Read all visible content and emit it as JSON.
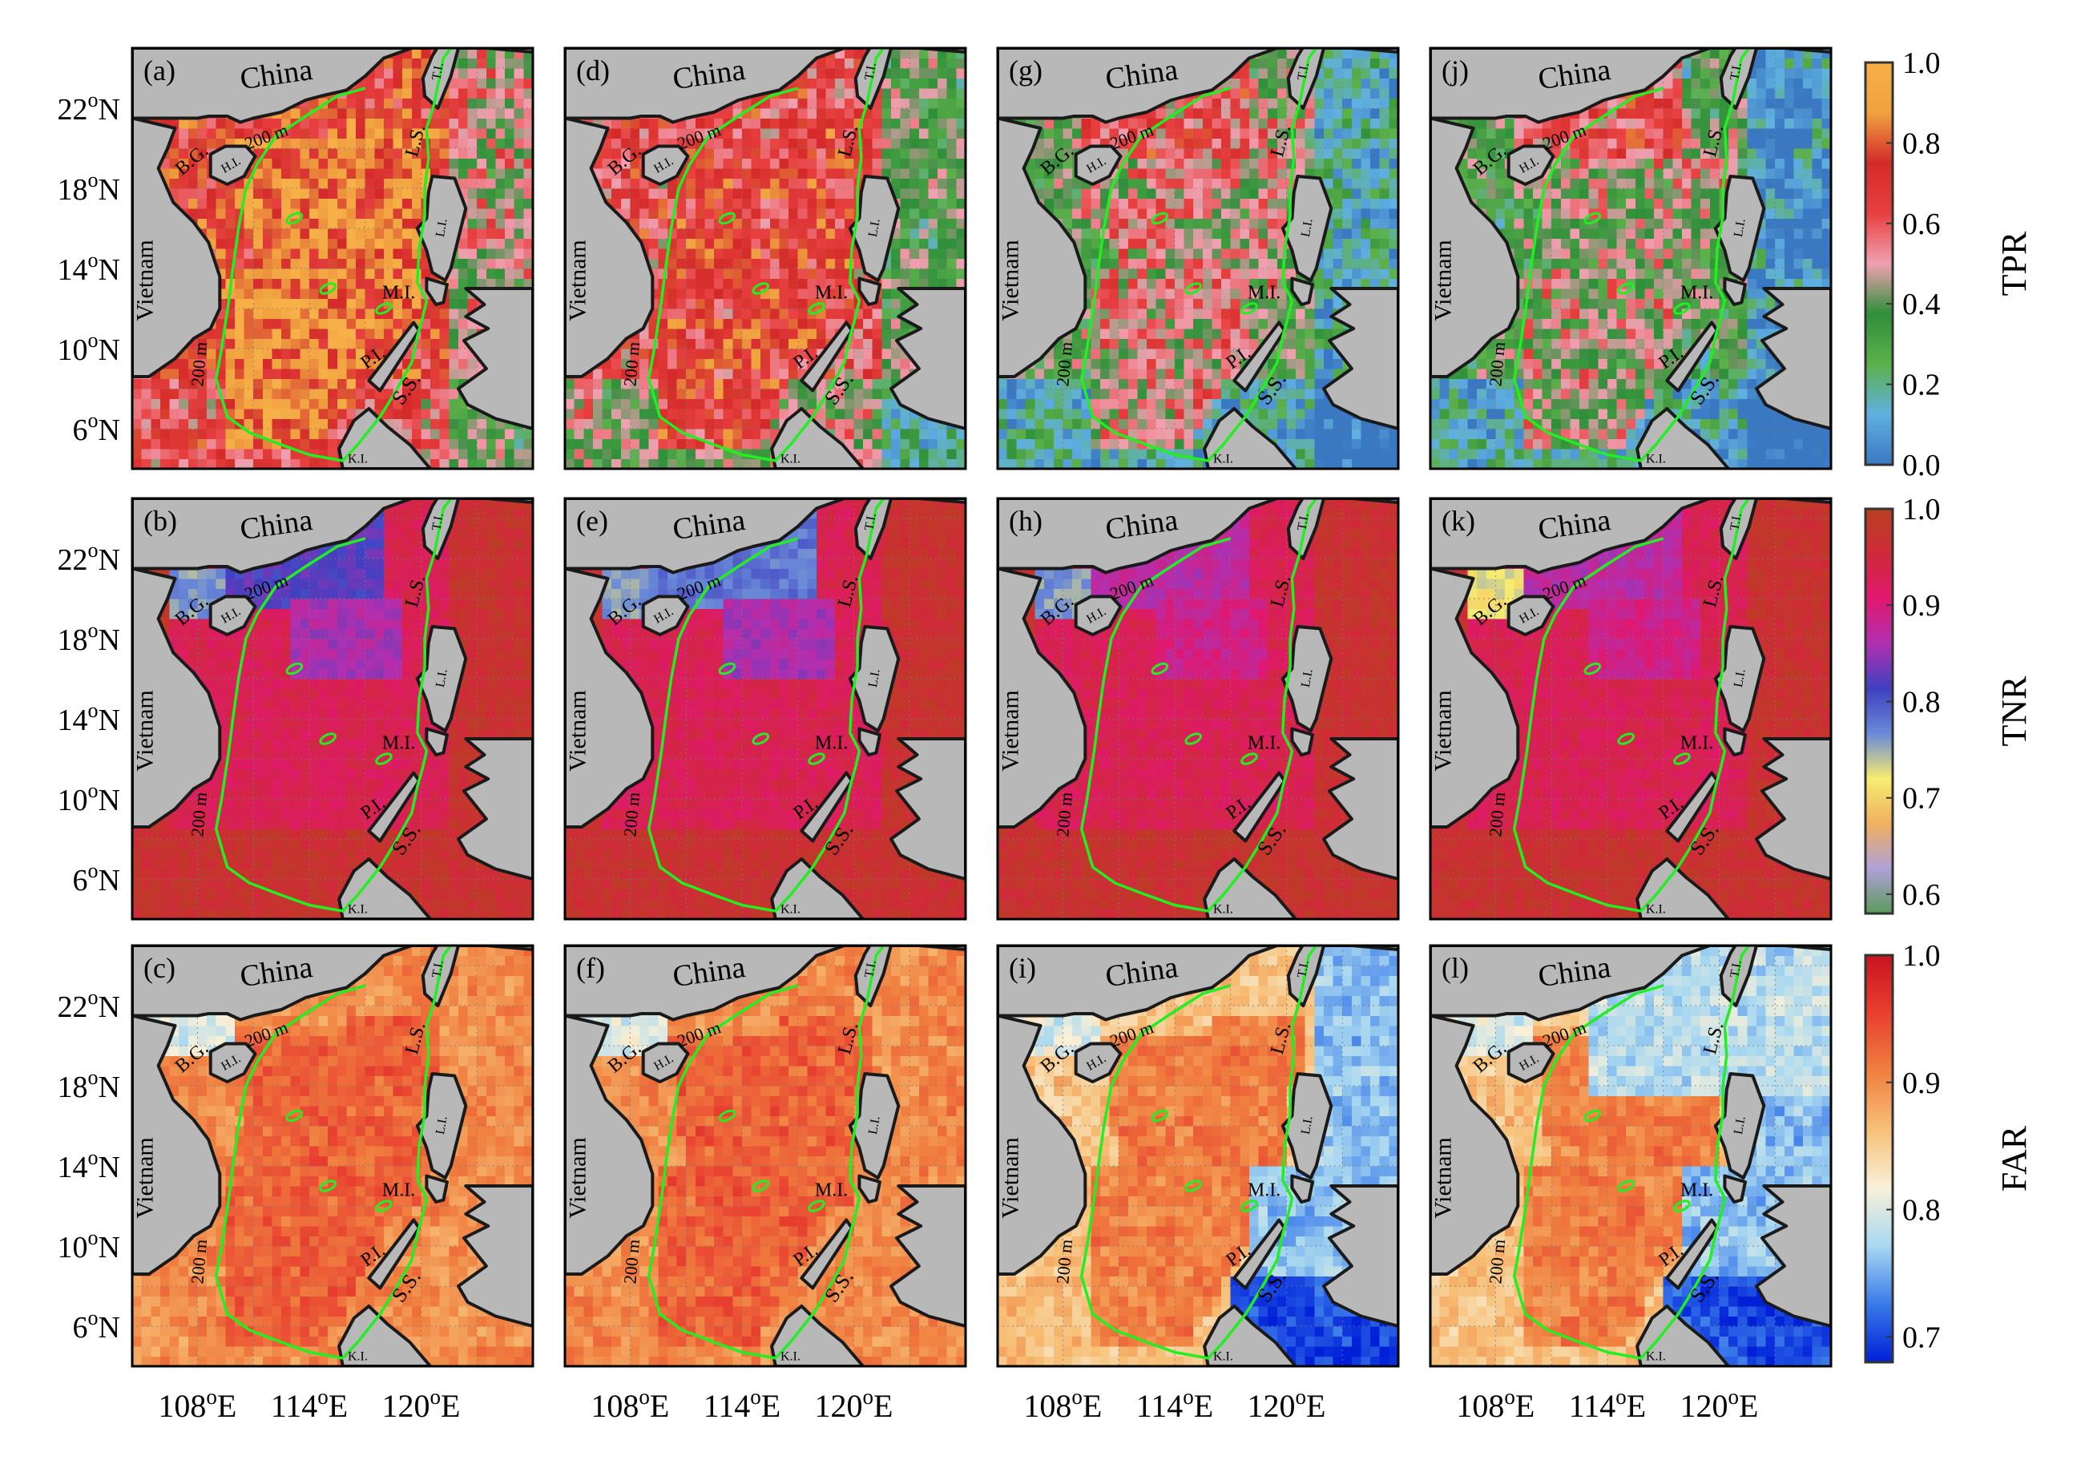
{
  "figure": {
    "map_labels": {
      "country_north": "China",
      "country_west": "Vietnam",
      "bay": "B.G.",
      "island_hainan": "H.I.",
      "strait_luzon": "L.S.",
      "island_luzon": "L.I.",
      "island_mindoro": "M.I.",
      "island_palawan": "P.I.",
      "sea_sulu": "S.S.",
      "island_kalimantan": "K.I.",
      "island_taiwan": "T.I.",
      "isobath_1": "200 m",
      "isobath_2": "200 m"
    },
    "lat_ticks": [
      "22",
      "18",
      "14",
      "10",
      "6"
    ],
    "lat_suffix": "N",
    "lon_ticks": [
      "108",
      "114",
      "120"
    ],
    "lon_suffix": "E",
    "degree_mark": "o",
    "panel_letters": [
      [
        "(a)",
        "(b)",
        "(c)"
      ],
      [
        "(d)",
        "(e)",
        "(f)"
      ],
      [
        "(g)",
        "(h)",
        "(i)"
      ],
      [
        "(j)",
        "(k)",
        "(l)"
      ]
    ],
    "rows": [
      {
        "metric": "TPR",
        "cbar_ticks": [
          "1.0",
          "0.8",
          "0.6",
          "0.4",
          "0.2",
          "0.0"
        ],
        "range": [
          0.0,
          1.0
        ]
      },
      {
        "metric": "TNR",
        "cbar_ticks": [
          "1.0",
          "0.9",
          "0.8",
          "0.7",
          "0.6"
        ],
        "range": [
          0.58,
          1.0
        ]
      },
      {
        "metric": "FAR",
        "cbar_ticks": [
          "1.0",
          "0.9",
          "0.8",
          "0.7"
        ],
        "range": [
          0.68,
          1.0
        ]
      }
    ],
    "colors": {
      "land": "#b8b8b8",
      "coast": "#1a1a1a",
      "isobath": "#22ee22",
      "grid": "#7a7a7a",
      "cmap_tpr": [
        "#3a78c2",
        "#60b0e0",
        "#5cb04a",
        "#2f8f3a",
        "#f0a0b0",
        "#e84040",
        "#d42a2a",
        "#f0a040",
        "#f7b048"
      ],
      "cmap_tnr": [
        "#5a9a5a",
        "#b0a0d8",
        "#f0b060",
        "#f7ec70",
        "#6a8ad8",
        "#4040c0",
        "#b030b0",
        "#e0186e",
        "#d02a3a",
        "#b84020"
      ],
      "cmap_far": [
        "#0020d8",
        "#3a7aea",
        "#a8d8f0",
        "#f8f0d8",
        "#f7c078",
        "#f08040",
        "#e84030",
        "#c81420"
      ]
    }
  }
}
